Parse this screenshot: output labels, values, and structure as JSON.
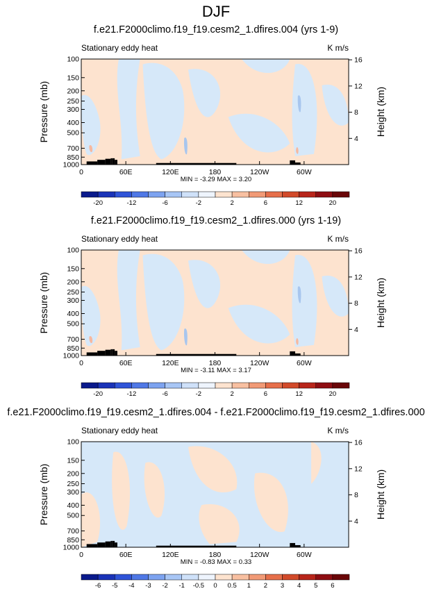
{
  "figure": {
    "title": "DJF",
    "colors": {
      "background": "#ffffff",
      "positive_fill": "#fde3cf",
      "negative_fill": "#d6e8f9",
      "deeper_negative": "#a8c6ee",
      "deeper_positive": "#f6b89f",
      "terrain": "#000000"
    }
  },
  "chart_data": [
    {
      "type": "heatmap",
      "title": "f.e21.F2000climo.f19_f19.cesm2_1.dfires.004 (yrs 1-9)",
      "subtitle_left": "Stationary eddy heat",
      "units": "K m/s",
      "ylabel": "Pressure (mb)",
      "ylabel_right": "Height (km)",
      "x_ticks": [
        "0",
        "60E",
        "120E",
        "180",
        "120W",
        "60W"
      ],
      "y_ticks": [
        "100",
        "150",
        "200",
        "250",
        "300",
        "400",
        "500",
        "700",
        "850",
        "1000"
      ],
      "y_ticks_right": [
        "16",
        "12",
        "8",
        "4"
      ],
      "y_scale": "log",
      "min_max_text": "MIN = -3.29  MAX =  3.20",
      "min": -3.29,
      "max": 3.2,
      "colorbar_labels": [
        "-20",
        "-12",
        "-6",
        "-2",
        "2",
        "6",
        "12",
        "20"
      ],
      "colorbar_levels": [
        -20,
        -16,
        -12,
        -8,
        -6,
        -4,
        -2,
        -1,
        1,
        2,
        4,
        6,
        8,
        12,
        16,
        20
      ]
    },
    {
      "type": "heatmap",
      "title": "f.e21.F2000climo.f19_f19.cesm2_1.dfires.000 (yrs 1-19)",
      "subtitle_left": "Stationary eddy heat",
      "units": "K m/s",
      "ylabel": "Pressure (mb)",
      "ylabel_right": "Height (km)",
      "x_ticks": [
        "0",
        "60E",
        "120E",
        "180",
        "120W",
        "60W"
      ],
      "y_ticks": [
        "100",
        "150",
        "200",
        "250",
        "300",
        "400",
        "500",
        "700",
        "850",
        "1000"
      ],
      "y_ticks_right": [
        "16",
        "12",
        "8",
        "4"
      ],
      "y_scale": "log",
      "min_max_text": "MIN = -3.11  MAX =  3.17",
      "min": -3.11,
      "max": 3.17,
      "colorbar_labels": [
        "-20",
        "-12",
        "-6",
        "-2",
        "2",
        "6",
        "12",
        "20"
      ],
      "colorbar_levels": [
        -20,
        -16,
        -12,
        -8,
        -6,
        -4,
        -2,
        -1,
        1,
        2,
        4,
        6,
        8,
        12,
        16,
        20
      ]
    },
    {
      "type": "heatmap",
      "title": "f.e21.F2000climo.f19_f19.cesm2_1.dfires.004 - f.e21.F2000climo.f19_f19.cesm2_1.dfires.000",
      "subtitle_left": "Stationary eddy heat",
      "units": "K m/s",
      "ylabel": "Pressure (mb)",
      "ylabel_right": "Height (km)",
      "x_ticks": [
        "0",
        "60E",
        "120E",
        "180",
        "120W",
        "60W"
      ],
      "y_ticks": [
        "100",
        "150",
        "200",
        "250",
        "300",
        "400",
        "500",
        "700",
        "850",
        "1000"
      ],
      "y_ticks_right": [
        "16",
        "12",
        "8",
        "4"
      ],
      "y_scale": "log",
      "min_max_text": "MIN = -0.83  MAX =  0.33",
      "min": -0.83,
      "max": 0.33,
      "colorbar_labels": [
        "-6",
        "-5",
        "-4",
        "-3",
        "-2",
        "-1",
        "-0.5",
        "0",
        "0.5",
        "1",
        "2",
        "3",
        "4",
        "5",
        "6"
      ],
      "colorbar_levels": [
        -6,
        -5,
        -4,
        -3,
        -2,
        -1,
        -0.5,
        0,
        0.5,
        1,
        2,
        3,
        4,
        5,
        6
      ]
    }
  ],
  "colorbar_colors_12": [
    "#0a1a8c",
    "#1a33b8",
    "#2f54d8",
    "#4f78e6",
    "#7da3f0",
    "#a8c6f5",
    "#cfe1f9",
    "#eef4fd",
    "#fde3cf",
    "#f8c0a1",
    "#f19a76",
    "#e66f4a",
    "#d24a2a",
    "#b8251a",
    "#8e0d12",
    "#6a0608"
  ],
  "colorbar_colors_16": [
    "#0a1a8c",
    "#1a33b8",
    "#2f54d8",
    "#4f78e6",
    "#7da3f0",
    "#a8c6f5",
    "#cfe1f9",
    "#eef4fd",
    "#fde3cf",
    "#f8c0a1",
    "#f19a76",
    "#e66f4a",
    "#d24a2a",
    "#b8251a",
    "#8e0d12",
    "#6a0608"
  ]
}
